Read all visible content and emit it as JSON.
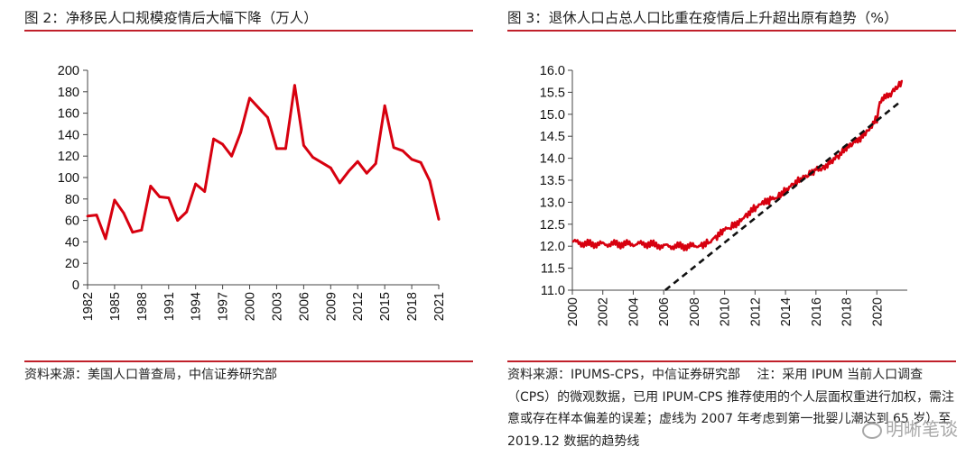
{
  "left": {
    "title": "图 2：净移民人口规模疫情后大幅下降（万人）",
    "source": "资料来源：美国人口普查局，中信证券研究部"
  },
  "right": {
    "title": "图 3：退休人口占总人口比重在疫情后上升超出原有趋势（%）",
    "source": "资料来源：IPUMS-CPS，中信证券研究部　 注：采用 IPUM 当前人口调查（CPS）的微观数据，已用 IPUM-CPS 推荐使用的个人层面权重进行加权，需注意或存在样本偏差的误差；虚线为 2007 年考虑到第一批婴儿潮达到 65 岁）至 2019.12 数据的趋势线"
  },
  "watermark": "明晰笔谈",
  "colors": {
    "series": "#d7000f",
    "rule": "#c0202a",
    "trend": "#111111"
  },
  "chart_data": [
    {
      "type": "line",
      "title": "图 2：净移民人口规模疫情后大幅下降（万人）",
      "x": [
        1982,
        1983,
        1984,
        1985,
        1986,
        1987,
        1988,
        1989,
        1990,
        1991,
        1992,
        1993,
        1994,
        1995,
        1996,
        1997,
        1998,
        1999,
        2000,
        2001,
        2002,
        2003,
        2004,
        2005,
        2006,
        2007,
        2008,
        2009,
        2010,
        2011,
        2012,
        2013,
        2014,
        2015,
        2016,
        2017,
        2018,
        2019,
        2020,
        2021
      ],
      "series": [
        {
          "values": [
            64,
            65,
            43,
            79,
            67,
            49,
            51,
            92,
            82,
            81,
            60,
            68,
            94,
            87,
            136,
            131,
            120,
            142,
            174,
            165,
            156,
            127,
            127,
            186,
            130,
            119,
            114,
            109,
            95,
            106,
            115,
            104,
            113,
            167,
            128,
            125,
            117,
            114,
            97,
            61
          ]
        }
      ],
      "xticks": [
        1982,
        1985,
        1988,
        1991,
        1994,
        1997,
        2000,
        2003,
        2006,
        2009,
        2012,
        2015,
        2018,
        2021
      ],
      "yticks": [
        0,
        20,
        40,
        60,
        80,
        100,
        120,
        140,
        160,
        180,
        200
      ],
      "ylim": [
        0,
        200
      ],
      "xlabel": "",
      "ylabel": "",
      "grid": false
    },
    {
      "type": "line",
      "title": "图 3：退休人口占总人口比重在疫情后上升超出原有趋势（%）",
      "series": [
        {
          "x": [
            2000,
            2001,
            2002,
            2003,
            2004,
            2005,
            2006,
            2007,
            2008,
            2008.5,
            2009,
            2009.5,
            2010,
            2010.5,
            2011,
            2011.5,
            2012,
            2012.5,
            2013,
            2013.5,
            2014,
            2014.5,
            2015,
            2015.5,
            2016,
            2016.5,
            2017,
            2017.5,
            2018,
            2018.5,
            2019,
            2019.5,
            2020,
            2020.2,
            2020.5,
            2021,
            2021.4,
            2021.7
          ],
          "values": [
            12.1,
            12.05,
            12.05,
            12.05,
            12.05,
            12.05,
            12.0,
            12.0,
            12.0,
            12.05,
            12.1,
            12.2,
            12.35,
            12.45,
            12.6,
            12.75,
            12.85,
            12.95,
            13.05,
            13.15,
            13.3,
            13.4,
            13.5,
            13.6,
            13.75,
            13.8,
            13.95,
            14.05,
            14.2,
            14.35,
            14.5,
            14.7,
            14.9,
            15.25,
            15.35,
            15.5,
            15.7,
            15.75
          ]
        }
      ],
      "trend": {
        "x": [
          2006.1,
          2021.6
        ],
        "values": [
          11.0,
          15.3
        ],
        "style": "dashed"
      },
      "xticks": [
        2000,
        2002,
        2004,
        2006,
        2008,
        2010,
        2012,
        2014,
        2016,
        2018,
        2020
      ],
      "yticks": [
        11.0,
        11.5,
        12.0,
        12.5,
        13.0,
        13.5,
        14.0,
        14.5,
        15.0,
        15.5,
        16.0
      ],
      "ylim": [
        11.0,
        16.0
      ],
      "xlim": [
        2000,
        2022
      ],
      "xlabel": "",
      "ylabel": "",
      "grid": false
    }
  ]
}
